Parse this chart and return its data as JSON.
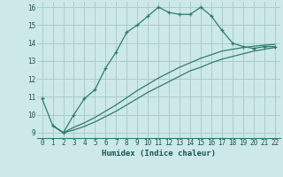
{
  "xlabel": "Humidex (Indice chaleur)",
  "bg_color": "#cde8e8",
  "grid_color": "#aacccc",
  "line_color": "#2e7d6e",
  "xlim": [
    -0.5,
    22.5
  ],
  "ylim": [
    8.7,
    16.3
  ],
  "xticks": [
    0,
    1,
    2,
    3,
    4,
    5,
    6,
    7,
    8,
    9,
    10,
    11,
    12,
    13,
    14,
    15,
    16,
    17,
    18,
    19,
    20,
    21,
    22
  ],
  "yticks": [
    9,
    10,
    11,
    12,
    13,
    14,
    15,
    16
  ],
  "line1_x": [
    0,
    1,
    2,
    3,
    4,
    5,
    6,
    7,
    8,
    9,
    10,
    11,
    12,
    13,
    14,
    15,
    16,
    17,
    18,
    19,
    20,
    21,
    22
  ],
  "line1_y": [
    10.9,
    9.4,
    9.0,
    10.0,
    10.9,
    11.4,
    12.6,
    13.5,
    14.6,
    15.0,
    15.5,
    16.0,
    15.7,
    15.6,
    15.6,
    16.0,
    15.5,
    14.7,
    14.0,
    13.8,
    13.7,
    13.8,
    13.8
  ],
  "line2_x": [
    1,
    2,
    3,
    4,
    5,
    6,
    7,
    8,
    9,
    10,
    11,
    12,
    13,
    14,
    15,
    16,
    17,
    18,
    19,
    20,
    21,
    22
  ],
  "line2_y": [
    9.4,
    9.0,
    9.15,
    9.35,
    9.6,
    9.9,
    10.2,
    10.55,
    10.9,
    11.25,
    11.55,
    11.85,
    12.15,
    12.45,
    12.65,
    12.9,
    13.1,
    13.25,
    13.4,
    13.55,
    13.65,
    13.75
  ],
  "line3_x": [
    1,
    2,
    3,
    4,
    5,
    6,
    7,
    8,
    9,
    10,
    11,
    12,
    13,
    14,
    15,
    16,
    17,
    18,
    19,
    20,
    21,
    22
  ],
  "line3_y": [
    9.4,
    9.0,
    9.3,
    9.55,
    9.85,
    10.2,
    10.55,
    10.95,
    11.35,
    11.7,
    12.05,
    12.35,
    12.65,
    12.9,
    13.15,
    13.35,
    13.55,
    13.65,
    13.75,
    13.82,
    13.88,
    13.92
  ]
}
